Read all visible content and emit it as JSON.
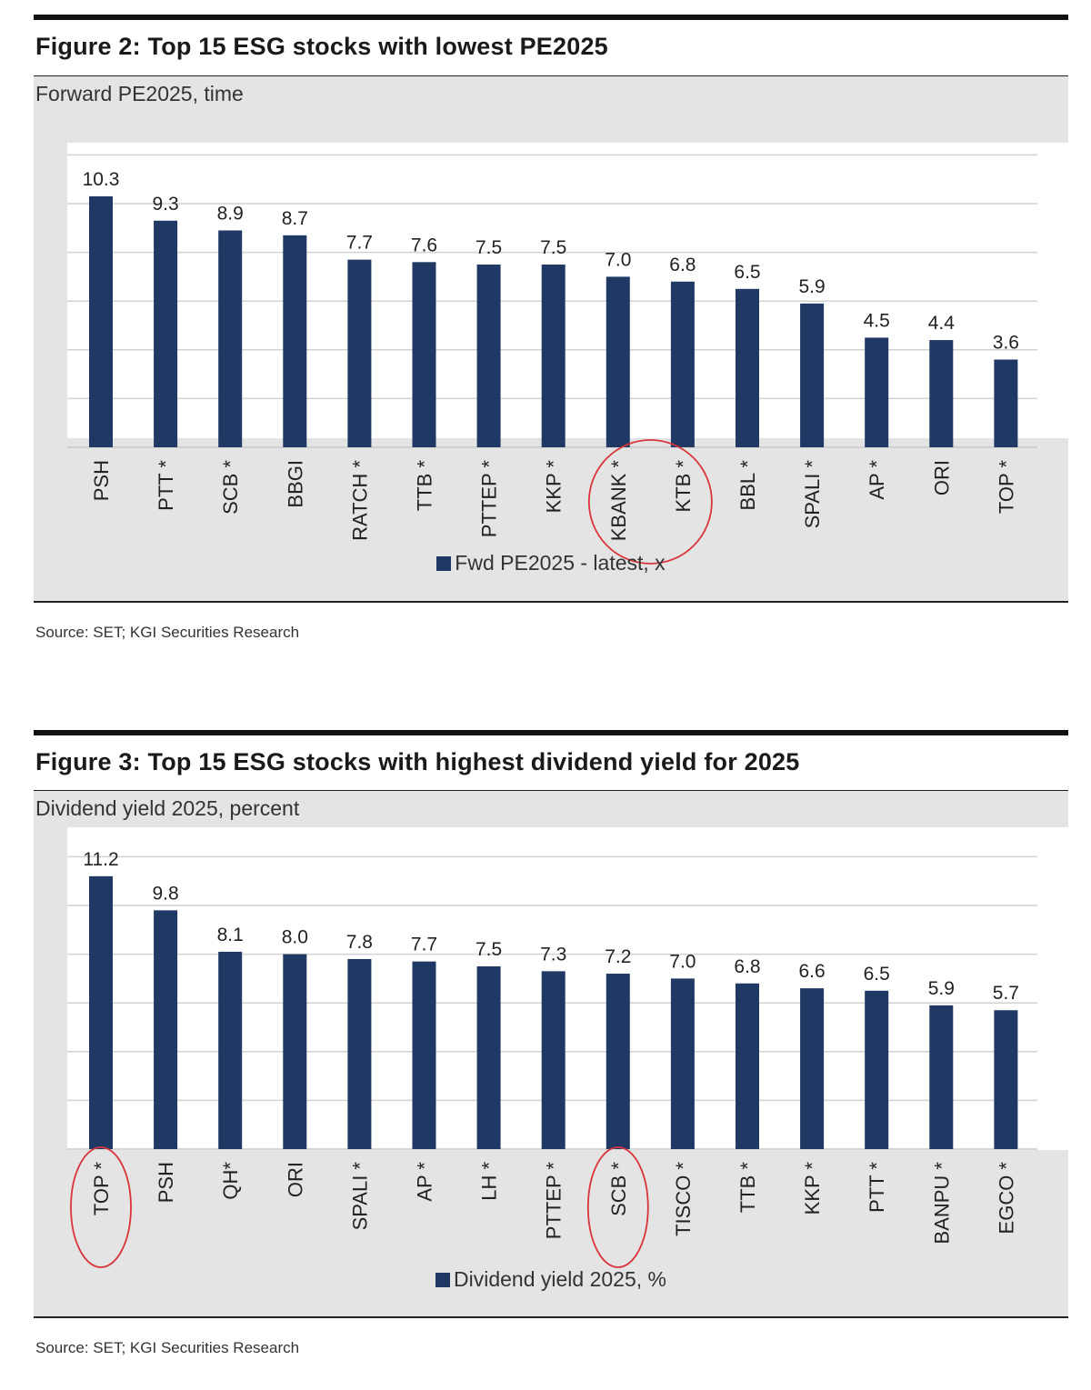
{
  "bar_color": "#1f3864",
  "highlight_color": "#d9353a",
  "figures": [
    {
      "title": "Figure 2: Top 15 ESG stocks with lowest PE2025",
      "subtitle": "Forward PE2025, time",
      "legend": "Fwd PE2025 - latest, x",
      "source": "Source: SET; KGI Securities Research",
      "highlight_categories": [
        "KBANK *",
        "KTB *"
      ]
    },
    {
      "title": "Figure 3: Top 15 ESG stocks with highest dividend yield for 2025",
      "subtitle": "Dividend yield 2025, percent",
      "legend": "Dividend yield 2025, %",
      "source": "Source: SET; KGI Securities Research",
      "highlight_categories": [
        "TOP *",
        "SCB *"
      ]
    }
  ],
  "chart_data": [
    {
      "type": "bar",
      "title": "Figure 2: Top 15 ESG stocks with lowest PE2025",
      "ylabel": "Forward PE2025, time",
      "categories": [
        "PSH",
        "PTT *",
        "SCB *",
        "BBGI",
        "RATCH *",
        "TTB *",
        "PTTEP *",
        "KKP *",
        "KBANK *",
        "KTB *",
        "BBL *",
        "SPALI *",
        "AP *",
        "ORI",
        "TOP *"
      ],
      "series": [
        {
          "name": "Fwd PE2025 - latest, x",
          "values": [
            10.3,
            9.3,
            8.9,
            8.7,
            7.7,
            7.6,
            7.5,
            7.5,
            7.0,
            6.8,
            6.5,
            5.9,
            4.5,
            4.4,
            3.6
          ]
        }
      ],
      "value_labels": [
        "10.3",
        "9.3",
        "8.9",
        "8.7",
        "7.7",
        "7.6",
        "7.5",
        "7.5",
        "7.0",
        "6.8",
        "6.5",
        "5.9",
        "4.5",
        "4.4",
        "3.6"
      ],
      "ylim": [
        0,
        12
      ],
      "grid": true,
      "y_tick_labels_shown": false,
      "legend_position": "bottom-center"
    },
    {
      "type": "bar",
      "title": "Figure 3: Top 15 ESG stocks with highest dividend yield for 2025",
      "ylabel": "Dividend yield 2025, percent",
      "categories": [
        "TOP *",
        "PSH",
        "QH*",
        "ORI",
        "SPALI *",
        "AP *",
        "LH *",
        "PTTEP *",
        "SCB *",
        "TISCO *",
        "TTB *",
        "KKP *",
        "PTT *",
        "BANPU *",
        "EGCO *"
      ],
      "series": [
        {
          "name": "Dividend yield 2025, %",
          "values": [
            11.2,
            9.8,
            8.1,
            8.0,
            7.8,
            7.7,
            7.5,
            7.3,
            7.2,
            7.0,
            6.8,
            6.6,
            6.5,
            5.9,
            5.7
          ]
        }
      ],
      "value_labels": [
        "11.2",
        "9.8",
        "8.1",
        "8.0",
        "7.8",
        "7.7",
        "7.5",
        "7.3",
        "7.2",
        "7.0",
        "6.8",
        "6.6",
        "6.5",
        "5.9",
        "5.7"
      ],
      "ylim": [
        0,
        12
      ],
      "grid": true,
      "y_tick_labels_shown": false,
      "legend_position": "bottom-center"
    }
  ]
}
